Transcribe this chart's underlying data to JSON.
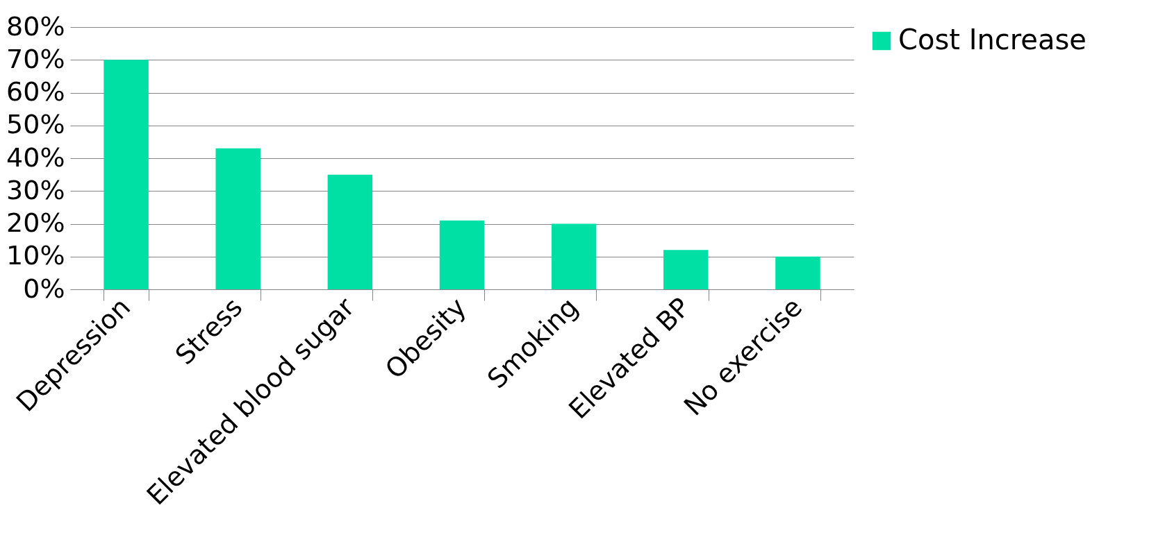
{
  "chart_data": {
    "type": "bar",
    "categories": [
      "Depression",
      "Stress",
      "Elevated blood sugar",
      "Obesity",
      "Smoking",
      "Elevated BP",
      "No exercise"
    ],
    "series": [
      {
        "name": "Cost Increase",
        "color": "#00e0a4",
        "values": [
          70,
          43,
          35,
          21,
          20,
          12,
          10
        ]
      }
    ],
    "ylim": [
      0,
      80
    ],
    "yticks": [
      {
        "value": 0,
        "label": "0%"
      },
      {
        "value": 10,
        "label": "10%"
      },
      {
        "value": 20,
        "label": "20%"
      },
      {
        "value": 30,
        "label": "30%"
      },
      {
        "value": 40,
        "label": "40%"
      },
      {
        "value": 50,
        "label": "50%"
      },
      {
        "value": 60,
        "label": "60%"
      },
      {
        "value": 70,
        "label": "70%"
      },
      {
        "value": 80,
        "label": "80%"
      }
    ],
    "grid": "y",
    "legend": "right"
  }
}
